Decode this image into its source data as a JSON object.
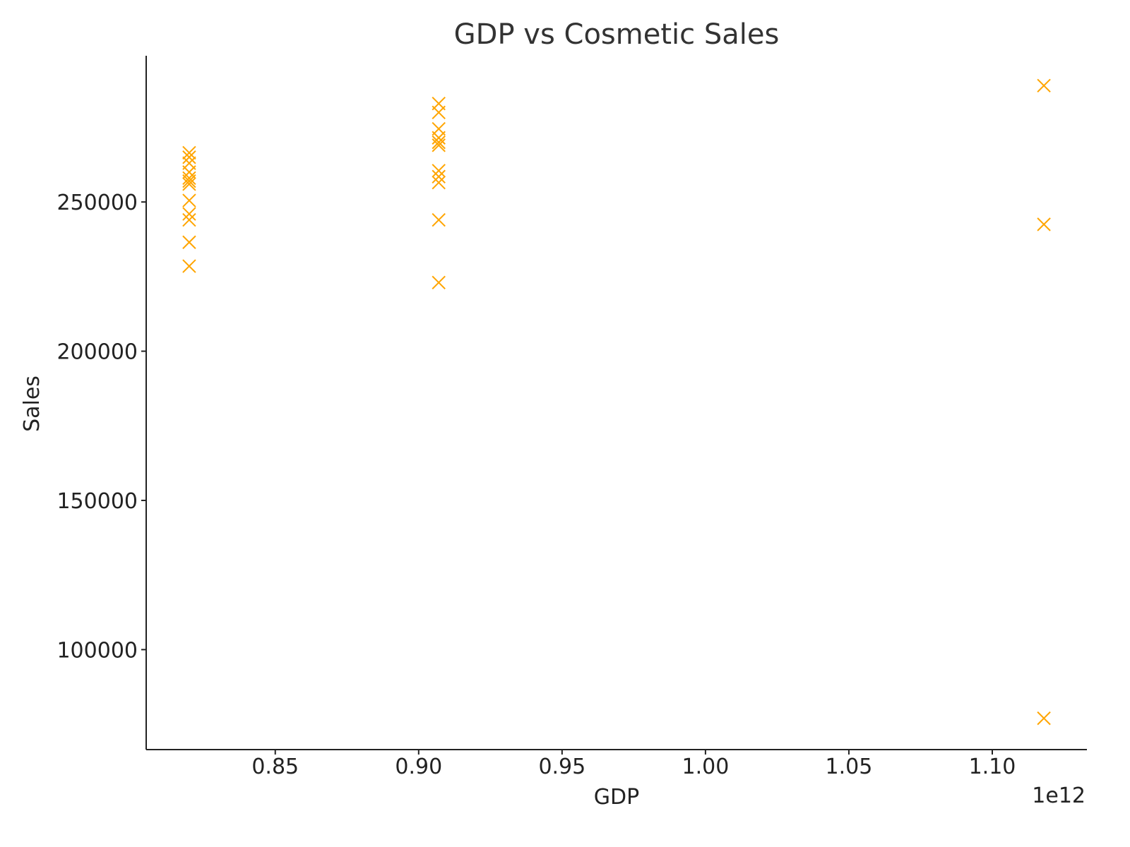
{
  "colors": {
    "marker": "#FFA500",
    "axis": "#222222",
    "title": "#333333"
  },
  "chart_data": {
    "type": "scatter",
    "title": "GDP vs Cosmetic Sales",
    "xlabel": "GDP",
    "ylabel": "Sales",
    "x_offset_label": "1e12",
    "xlim": [
      0.805,
      1.133
    ],
    "ylim": [
      66500,
      299000
    ],
    "x_ticks": [
      0.85,
      0.9,
      0.95,
      1.0,
      1.05,
      1.1
    ],
    "x_tick_labels": [
      "0.85",
      "0.90",
      "0.95",
      "1.00",
      "1.05",
      "1.10"
    ],
    "y_ticks": [
      100000,
      150000,
      200000,
      250000
    ],
    "y_tick_labels": [
      "100000",
      "150000",
      "200000",
      "250000"
    ],
    "grid": false,
    "marker": "x",
    "series": [
      {
        "points": [
          {
            "x": 0.82,
            "y": 266500
          },
          {
            "x": 0.82,
            "y": 265000
          },
          {
            "x": 0.82,
            "y": 263000
          },
          {
            "x": 0.82,
            "y": 260000
          },
          {
            "x": 0.82,
            "y": 258000
          },
          {
            "x": 0.82,
            "y": 257000
          },
          {
            "x": 0.82,
            "y": 256000
          },
          {
            "x": 0.82,
            "y": 250500
          },
          {
            "x": 0.82,
            "y": 246000
          },
          {
            "x": 0.82,
            "y": 244000
          },
          {
            "x": 0.82,
            "y": 236500
          },
          {
            "x": 0.82,
            "y": 228500
          },
          {
            "x": 0.907,
            "y": 283000
          },
          {
            "x": 0.907,
            "y": 280000
          },
          {
            "x": 0.907,
            "y": 274500
          },
          {
            "x": 0.907,
            "y": 271500
          },
          {
            "x": 0.907,
            "y": 270000
          },
          {
            "x": 0.907,
            "y": 269000
          },
          {
            "x": 0.907,
            "y": 260500
          },
          {
            "x": 0.907,
            "y": 258500
          },
          {
            "x": 0.907,
            "y": 256500
          },
          {
            "x": 0.907,
            "y": 244000
          },
          {
            "x": 0.907,
            "y": 223000
          },
          {
            "x": 1.118,
            "y": 289000
          },
          {
            "x": 1.118,
            "y": 242500
          },
          {
            "x": 1.118,
            "y": 77000
          }
        ]
      }
    ]
  }
}
